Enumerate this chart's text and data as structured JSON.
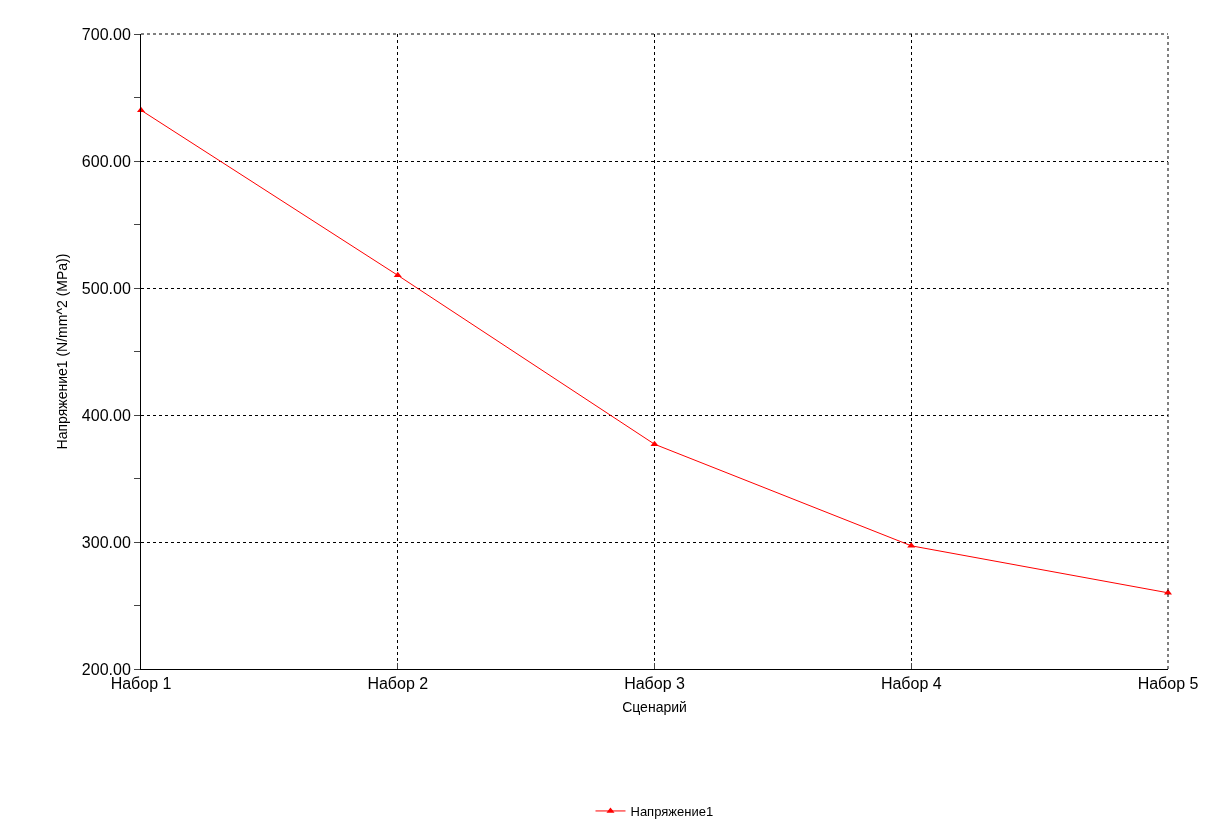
{
  "chart_data": {
    "type": "line",
    "xlabel": "Сценарий",
    "ylabel": "Напряжение1 (N/mm^2 (MPa))",
    "categories": [
      "Набор 1",
      "Набор 2",
      "Набор 3",
      "Набор 4",
      "Набор 5"
    ],
    "series": [
      {
        "name": "Напряжение1",
        "color": "#ff0000",
        "values": [
          640,
          510,
          377,
          297,
          260
        ]
      }
    ],
    "ylim": [
      200,
      700
    ],
    "yticks": [
      {
        "value": 200,
        "label": "200.00"
      },
      {
        "value": 300,
        "label": "300.00"
      },
      {
        "value": 400,
        "label": "400.00"
      },
      {
        "value": 500,
        "label": "500.00"
      },
      {
        "value": 600,
        "label": "600.00"
      },
      {
        "value": 700,
        "label": "700.00"
      }
    ],
    "grid": true,
    "legend": "bottom",
    "marker": "triangle",
    "line_style": "solid"
  }
}
